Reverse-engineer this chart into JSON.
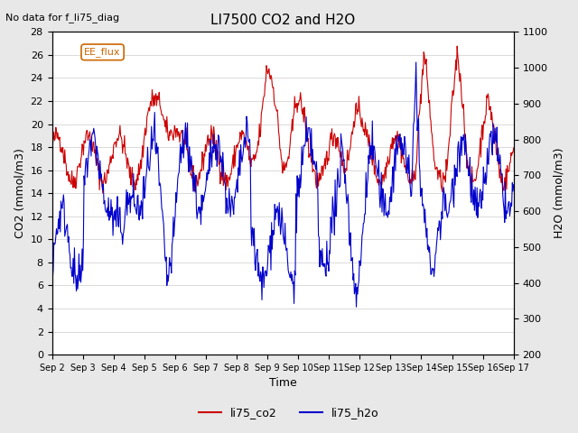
{
  "title": "LI7500 CO2 and H2O",
  "subtitle": "No data for f_li75_diag",
  "xlabel": "Time",
  "ylabel_left": "CO2 (mmol/m3)",
  "ylabel_right": "H2O (mmol/m3)",
  "ylim_left": [
    0,
    28
  ],
  "ylim_right": [
    200,
    1100
  ],
  "legend_labels": [
    "li75_co2",
    "li75_h2o"
  ],
  "legend_colors": [
    "#cc0000",
    "#0000cc"
  ],
  "box_label": "EE_flux",
  "xtick_labels": [
    "Sep 2",
    "Sep 3",
    "Sep 4",
    "Sep 5",
    "Sep 6",
    "Sep 7",
    "Sep 8",
    "Sep 9",
    "Sep 10",
    "Sep 11",
    "Sep 12",
    "Sep 13",
    "Sep 14",
    "Sep 15",
    "Sep 16",
    "Sep 17"
  ],
  "co2_color": "#cc0000",
  "h2o_color": "#0000cc",
  "background_color": "#e8e8e8",
  "plot_bg_color": "#ffffff",
  "grid_color": "#cccccc"
}
